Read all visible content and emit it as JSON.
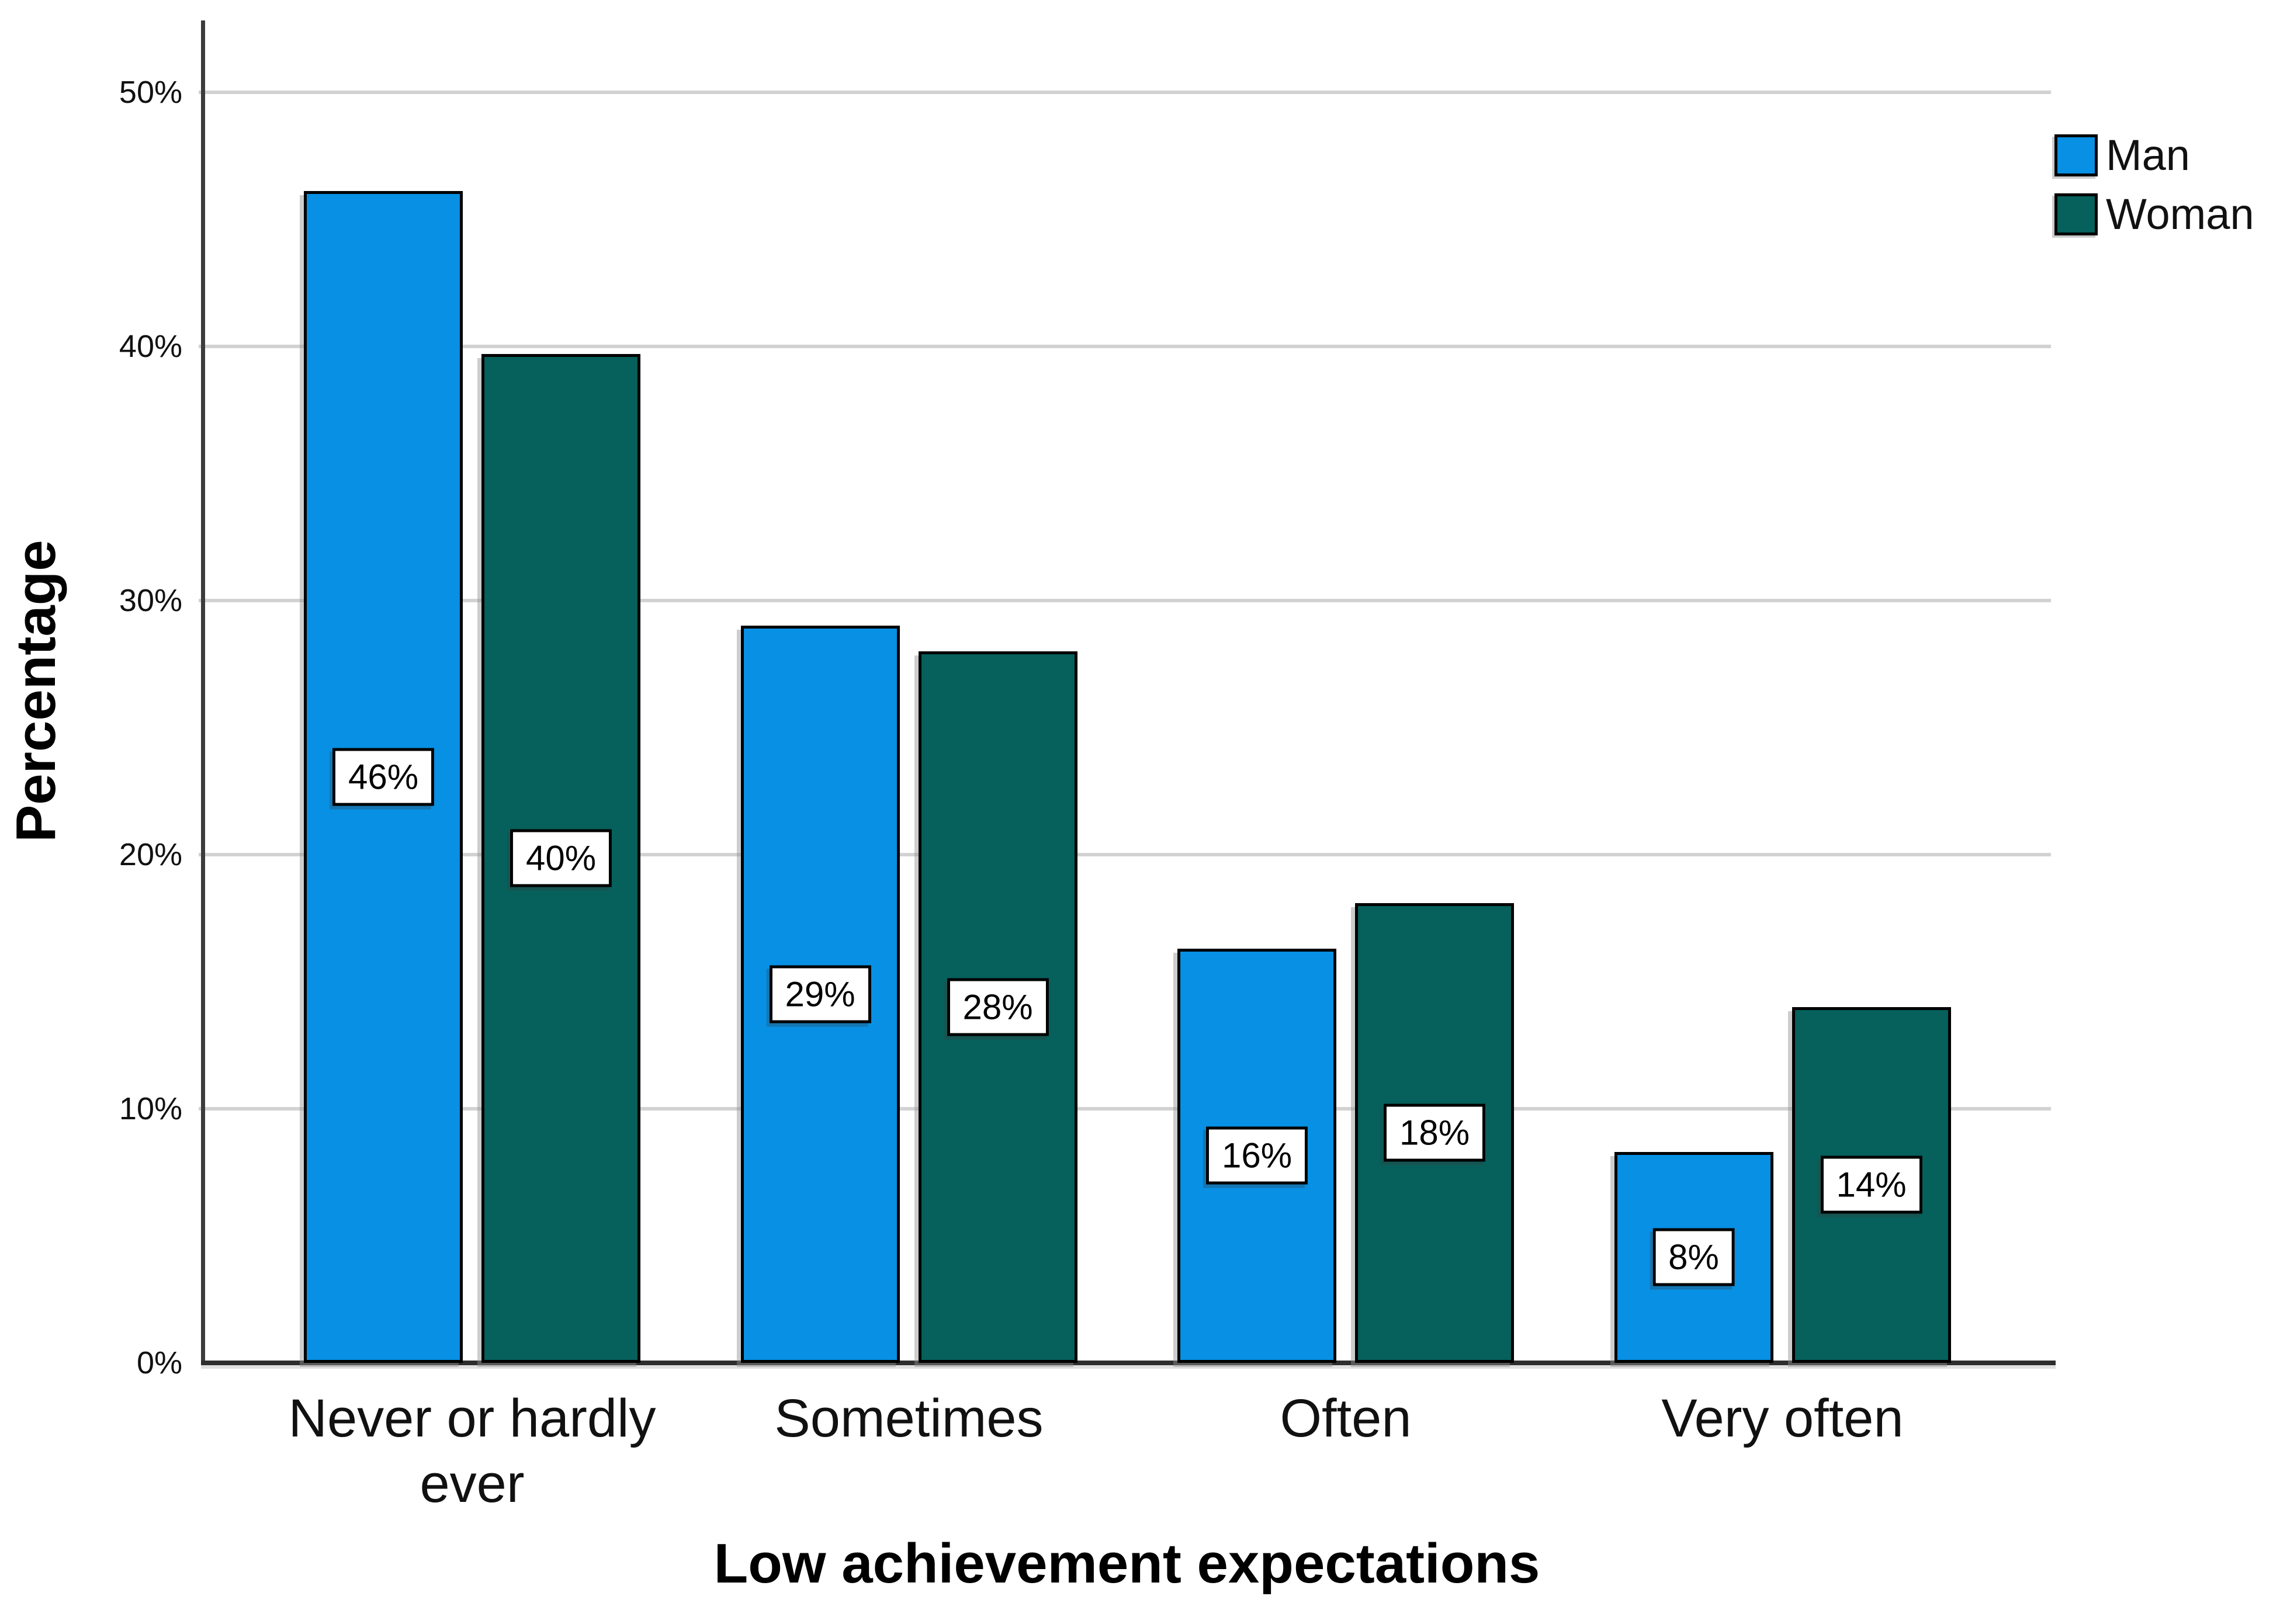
{
  "chart_data": {
    "type": "bar",
    "title": "",
    "xlabel": "Low achievement expectations",
    "ylabel": "Percentage",
    "categories": [
      "Never or hardly ever",
      "Sometimes",
      "Often",
      "Very often"
    ],
    "series": [
      {
        "name": "Man",
        "color": "#0790E4",
        "values": [
          46,
          29,
          16,
          8
        ],
        "labels": [
          "46%",
          "29%",
          "16%",
          "8%"
        ],
        "bar_heights_pct": [
          46.1,
          29.0,
          16.3,
          8.3
        ]
      },
      {
        "name": "Woman",
        "color": "#06605B",
        "values": [
          40,
          28,
          18,
          14
        ],
        "labels": [
          "40%",
          "28%",
          "18%",
          "14%"
        ],
        "bar_heights_pct": [
          39.7,
          28.0,
          18.1,
          14.0
        ]
      }
    ],
    "y_tick_values": [
      0,
      10,
      20,
      30,
      40,
      50
    ],
    "y_tick_labels": [
      "0%",
      "10%",
      "20%",
      "30%",
      "40%",
      "50%"
    ],
    "ylim": [
      0,
      52.8
    ],
    "grid": "horizontal",
    "legend_position": "top-right",
    "colors": {
      "gridline": "#d2d2d2",
      "axis": "#2e2e2e",
      "bar_border": "#000000",
      "label_box_bg": "#ffffff",
      "label_box_border": "#000000",
      "label_text": "#000000",
      "background": "#ffffff"
    }
  }
}
